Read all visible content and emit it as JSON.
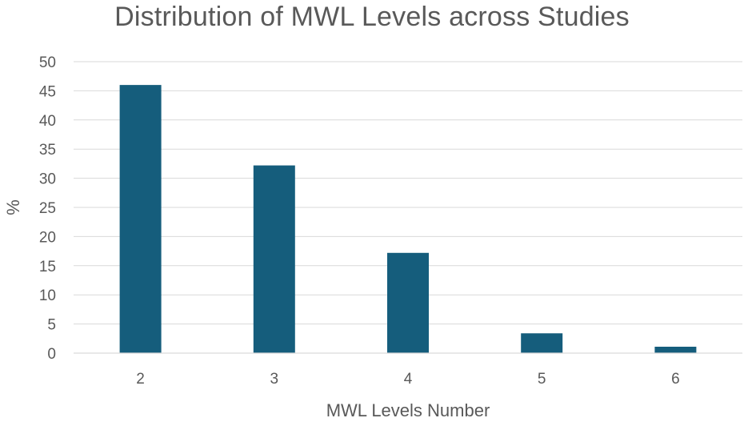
{
  "chart_data": {
    "type": "bar",
    "title": "Distribution of MWL Levels across Studies",
    "xlabel": "MWL Levels Number",
    "ylabel": "%",
    "categories": [
      "2",
      "3",
      "4",
      "5",
      "6"
    ],
    "values": [
      46,
      32.2,
      17.2,
      3.4,
      1.1
    ],
    "ylim": [
      0,
      50
    ],
    "yticks": [
      "0",
      "5",
      "10",
      "15",
      "20",
      "25",
      "30",
      "35",
      "40",
      "45",
      "50"
    ],
    "grid": true,
    "legend": "none",
    "bar_color": "#155d7c"
  }
}
